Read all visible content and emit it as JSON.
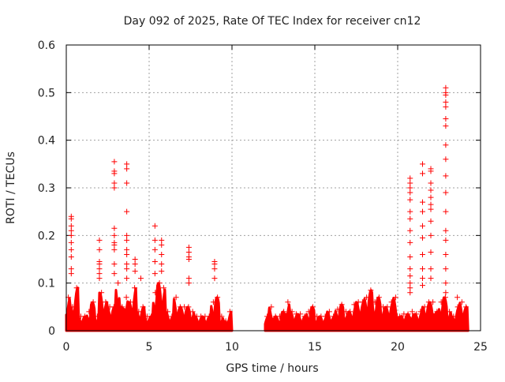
{
  "chart_data": {
    "type": "scatter",
    "title": "Day 092 of 2025, Rate Of TEC Index for receiver cn12",
    "xlabel": "GPS time / hours",
    "ylabel": "ROTI / TECUs",
    "xlim": [
      0,
      25
    ],
    "ylim": [
      0,
      0.6
    ],
    "xticks": [
      "0",
      "5",
      "10",
      "15",
      "20",
      "25"
    ],
    "xtick_values": [
      0,
      5,
      10,
      15,
      20,
      25
    ],
    "yticks": [
      "0",
      "0.1",
      "0.2",
      "0.3",
      "0.4",
      "0.5",
      "0.6"
    ],
    "ytick_values": [
      0,
      0.1,
      0.2,
      0.3,
      0.4,
      0.5,
      0.6
    ],
    "grid": true,
    "marker": "plus",
    "color": "#ff0000",
    "envelope_bin_hours": 0.25,
    "envelope": [
      {
        "start": 0,
        "max": [
          0.07,
          0.05,
          0.09,
          0.03,
          0.03,
          0.04,
          0.06,
          0.03,
          0.08,
          0.06,
          0.05,
          0.05,
          0.1,
          0.05,
          0.07,
          0.06,
          0.09,
          0.04,
          0.05,
          0.03,
          0.03,
          0.08,
          0.1,
          0.09,
          0.04,
          0.03,
          0.07,
          0.05,
          0.05,
          0.05,
          0.04,
          0.03,
          0.03,
          0.03,
          0.03,
          0.06,
          0.07,
          0.03,
          0.02,
          0.04
        ]
      },
      {
        "start": 12,
        "max": [
          0.03,
          0.05,
          0.03,
          0.03,
          0.04,
          0.06,
          0.04,
          0.035,
          0.035,
          0.03,
          0.04,
          0.05,
          0.03,
          0.03,
          0.03,
          0.04,
          0.03,
          0.045,
          0.055,
          0.04,
          0.04,
          0.055,
          0.06,
          0.06,
          0.07,
          0.085,
          0.06,
          0.07,
          0.05,
          0.05,
          0.06,
          0.07,
          0.03,
          0.035,
          0.035,
          0.04,
          0.035,
          0.04,
          0.05,
          0.06,
          0.06,
          0.04,
          0.06,
          0.07,
          0.04,
          0.03,
          0.05,
          0.06,
          0.05
        ]
      }
    ],
    "spikes": [
      {
        "x": 0.3,
        "y": [
          0.24,
          0.235,
          0.22,
          0.21,
          0.2,
          0.185,
          0.17,
          0.155,
          0.13,
          0.12
        ]
      },
      {
        "x": 2.0,
        "y": [
          0.19,
          0.17,
          0.145,
          0.14,
          0.13,
          0.12,
          0.11
        ]
      },
      {
        "x": 2.9,
        "y": [
          0.355,
          0.335,
          0.33,
          0.31,
          0.3,
          0.215,
          0.2,
          0.185,
          0.18,
          0.17,
          0.14,
          0.12
        ]
      },
      {
        "x": 3.65,
        "y": [
          0.35,
          0.34,
          0.31,
          0.25,
          0.2,
          0.19,
          0.17,
          0.16,
          0.14,
          0.13,
          0.11
        ]
      },
      {
        "x": 4.15,
        "y": [
          0.15,
          0.14,
          0.125
        ]
      },
      {
        "x": 4.5,
        "y": [
          0.11
        ]
      },
      {
        "x": 5.35,
        "y": [
          0.22,
          0.19,
          0.17,
          0.145,
          0.12
        ]
      },
      {
        "x": 5.75,
        "y": [
          0.19,
          0.18,
          0.16,
          0.14,
          0.125
        ]
      },
      {
        "x": 7.4,
        "y": [
          0.175,
          0.165,
          0.155,
          0.15,
          0.11,
          0.1
        ]
      },
      {
        "x": 8.95,
        "y": [
          0.145,
          0.14,
          0.13,
          0.11
        ]
      },
      {
        "x": 20.75,
        "y": [
          0.32,
          0.31,
          0.3,
          0.29,
          0.275,
          0.25,
          0.235,
          0.21,
          0.185,
          0.155,
          0.13,
          0.115,
          0.1,
          0.09,
          0.08
        ]
      },
      {
        "x": 21.5,
        "y": [
          0.35,
          0.33,
          0.27,
          0.25,
          0.22,
          0.195,
          0.16,
          0.13,
          0.11,
          0.095
        ]
      },
      {
        "x": 22.0,
        "y": [
          0.34,
          0.335,
          0.31,
          0.295,
          0.28,
          0.265,
          0.255,
          0.23,
          0.2,
          0.165,
          0.13,
          0.11
        ]
      },
      {
        "x": 22.9,
        "y": [
          0.51,
          0.5,
          0.495,
          0.48,
          0.47,
          0.445,
          0.43,
          0.39,
          0.36,
          0.325,
          0.29,
          0.25,
          0.21,
          0.19,
          0.16,
          0.13,
          0.1,
          0.08
        ]
      },
      {
        "x": 23.6,
        "y": [
          0.07
        ]
      }
    ]
  }
}
